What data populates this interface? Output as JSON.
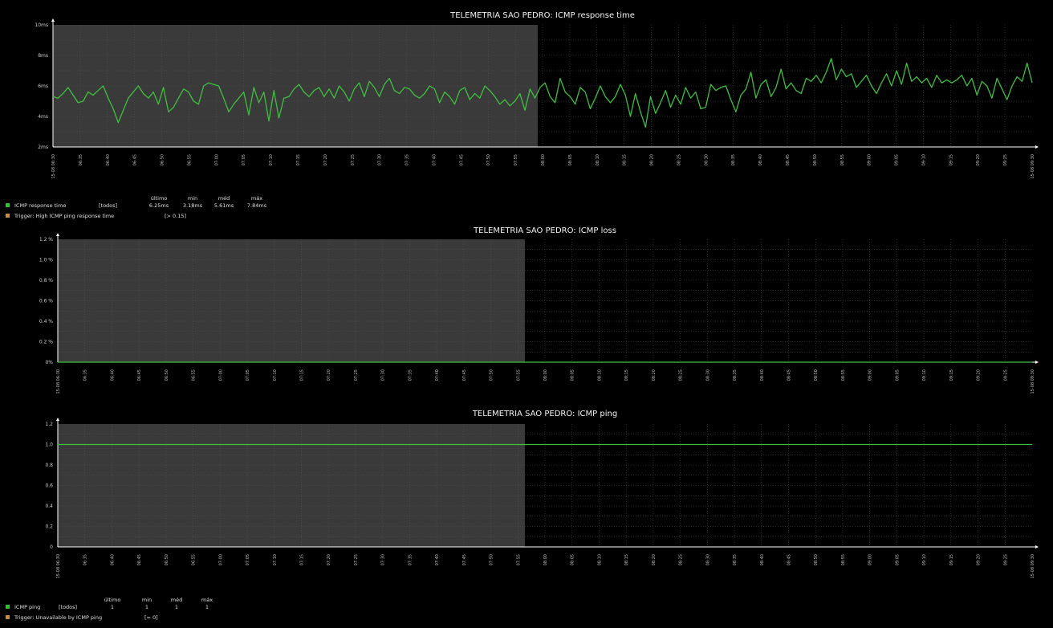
{
  "chart_data": [
    {
      "type": "line",
      "title": "TELEMETRIA SAO PEDRO: ICMP response time",
      "yticks": [
        "2ms",
        "4ms",
        "6ms",
        "8ms",
        "10ms"
      ],
      "ylim": [
        2,
        10
      ],
      "xlim": [
        "15-08 06:30",
        "15-08 09:30"
      ],
      "xticks_first": "15-08 06:30",
      "xticks_last": "15-08 09:30",
      "xticks": [
        "06:35",
        "06:40",
        "06:45",
        "06:50",
        "06:55",
        "07:00",
        "07:05",
        "07:10",
        "07:15",
        "07:20",
        "07:25",
        "07:30",
        "07:35",
        "07:40",
        "07:45",
        "07:50",
        "07:55",
        "08:00",
        "08:05",
        "08:10",
        "08:15",
        "08:20",
        "08:25",
        "08:30",
        "08:35",
        "08:40",
        "08:45",
        "08:50",
        "08:55",
        "09:00",
        "09:05",
        "09:10",
        "09:15",
        "09:20",
        "09:25"
      ],
      "grid": true,
      "series": [
        {
          "name": "ICMP response time",
          "color": "#3fbf3f",
          "values": [
            5.3,
            5.2,
            5.5,
            5.9,
            5.4,
            4.9,
            5.0,
            5.6,
            5.4,
            5.7,
            6.0,
            5.2,
            4.5,
            3.6,
            4.4,
            5.2,
            5.6,
            6.0,
            5.5,
            5.2,
            5.6,
            4.8,
            5.9,
            4.3,
            4.6,
            5.2,
            5.8,
            5.6,
            5.0,
            4.8,
            6.0,
            6.2,
            6.1,
            6.0,
            5.2,
            4.3,
            4.8,
            5.2,
            5.6,
            4.1,
            5.9,
            4.9,
            5.6,
            3.7,
            5.7,
            3.9,
            5.2,
            5.3,
            5.8,
            6.1,
            5.6,
            5.3,
            5.7,
            5.9,
            5.3,
            5.8,
            5.2,
            6.0,
            5.6,
            5.0,
            5.8,
            6.2,
            5.3,
            6.3,
            5.9,
            5.3,
            6.1,
            6.5,
            5.7,
            5.5,
            5.9,
            5.8,
            5.4,
            5.2,
            5.5,
            6.0,
            5.8,
            4.9,
            5.6,
            5.3,
            4.8,
            5.7,
            5.9,
            5.1,
            5.5,
            5.2,
            6.0,
            5.7,
            5.3,
            4.8,
            5.1,
            4.7,
            5.0,
            5.5,
            4.4,
            5.8,
            5.2,
            5.9,
            6.2,
            5.3,
            4.9,
            6.5,
            5.6,
            5.3,
            4.8,
            5.9,
            5.6,
            4.5,
            5.2,
            6.0,
            5.3,
            4.9,
            5.3,
            6.1,
            5.4,
            4.0,
            5.5,
            4.3,
            3.3,
            5.3,
            4.2,
            4.9,
            5.7,
            4.6,
            5.4,
            4.8,
            5.9,
            5.2,
            5.6,
            4.5,
            4.6,
            6.1,
            5.7,
            5.9,
            6.0,
            5.1,
            4.3,
            5.4,
            5.8,
            6.9,
            5.2,
            6.1,
            6.4,
            5.3,
            5.9,
            7.1,
            5.8,
            6.2,
            5.7,
            5.5,
            6.5,
            6.3,
            6.7,
            6.2,
            6.9,
            7.8,
            6.4,
            7.1,
            6.6,
            6.8,
            5.9,
            6.3,
            6.7,
            6.0,
            5.5,
            6.2,
            6.8,
            6.0,
            7.0,
            6.1,
            7.5,
            6.3,
            6.6,
            6.2,
            6.5,
            5.9,
            6.7,
            6.2,
            6.4,
            6.2,
            6.4,
            6.7,
            6.0,
            6.5,
            5.4,
            6.3,
            6.0,
            5.2,
            6.5,
            5.8,
            5.1,
            6.0,
            6.6,
            6.3,
            7.5,
            6.2
          ]
        }
      ],
      "legend_items": [
        {
          "name": "ICMP response time",
          "color": "#22cc22",
          "agg": "[todos]",
          "last": "6.25ms",
          "min": "3.18ms",
          "avg": "5.61ms",
          "max": "7.84ms"
        },
        {
          "name": "Trigger: High ICMP ping response time",
          "color": "#d08a33",
          "agg": "[> 0.15]"
        }
      ],
      "legend_headers": [
        "último",
        "min",
        "méd",
        "máx"
      ]
    },
    {
      "type": "line",
      "title": "TELEMETRIA SAO PEDRO: ICMP loss",
      "yticks": [
        "0%",
        "0.2 %",
        "0.4 %",
        "0.6 %",
        "0.8 %",
        "1.0 %",
        "1.2 %"
      ],
      "ylim": [
        0,
        1.2
      ],
      "xlim": [
        "15-08 06:30",
        "15-08 09:30"
      ],
      "xticks_first": "15-08 06:30",
      "xticks_last": "15-08 09:30",
      "xticks": [
        "06:35",
        "06:40",
        "06:45",
        "06:50",
        "06:55",
        "07:00",
        "07:05",
        "07:10",
        "07:15",
        "07:20",
        "07:25",
        "07:30",
        "07:35",
        "07:40",
        "07:45",
        "07:50",
        "07:55",
        "08:00",
        "08:05",
        "08:10",
        "08:15",
        "08:20",
        "08:25",
        "08:30",
        "08:35",
        "08:40",
        "08:45",
        "08:50",
        "08:55",
        "09:00",
        "09:05",
        "09:10",
        "09:15",
        "09:20",
        "09:25"
      ],
      "grid": true,
      "series": [
        {
          "name": "ICMP loss",
          "color": "#3fbf3f",
          "values": [
            0,
            0
          ]
        }
      ]
    },
    {
      "type": "line",
      "title": "TELEMETRIA SAO PEDRO: ICMP ping",
      "yticks": [
        "0",
        "0.2",
        "0.4",
        "0.6",
        "0.8",
        "1.0",
        "1.2"
      ],
      "ylim": [
        0,
        1.2
      ],
      "xlim": [
        "15-08 06:30",
        "15-08 09:30"
      ],
      "xticks_first": "15-08 06:30",
      "xticks_last": "15-08 09:30",
      "xticks": [
        "06:35",
        "06:40",
        "06:45",
        "06:50",
        "06:55",
        "07:00",
        "07:05",
        "07:10",
        "07:15",
        "07:20",
        "07:25",
        "07:30",
        "07:35",
        "07:40",
        "07:45",
        "07:50",
        "07:55",
        "08:00",
        "08:05",
        "08:10",
        "08:15",
        "08:20",
        "08:25",
        "08:30",
        "08:35",
        "08:40",
        "08:45",
        "08:50",
        "08:55",
        "09:00",
        "09:05",
        "09:10",
        "09:15",
        "09:20",
        "09:25"
      ],
      "grid": true,
      "series": [
        {
          "name": "ICMP ping",
          "color": "#3fbf3f",
          "values": [
            1,
            1
          ]
        }
      ],
      "legend_items": [
        {
          "name": "ICMP ping",
          "color": "#22cc22",
          "agg": "[todos]",
          "last": "1",
          "min": "1",
          "avg": "1",
          "max": "1"
        },
        {
          "name": "Trigger: Unavailable by ICMP ping",
          "color": "#d08a33",
          "agg": "[= 0]"
        }
      ],
      "legend_headers": [
        "último",
        "min",
        "méd",
        "máx"
      ]
    }
  ],
  "colors": {
    "background": "#000000",
    "plot_off": "#000000",
    "plot_work": "#3a3a3a",
    "grid": "#555555",
    "axis": "#ffffff"
  }
}
